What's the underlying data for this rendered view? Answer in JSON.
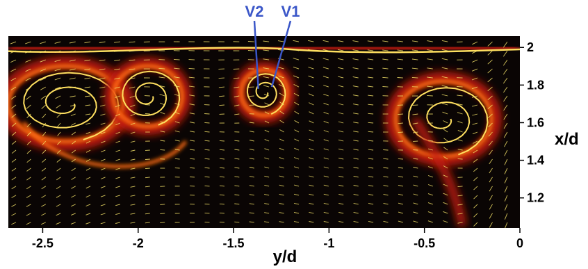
{
  "chart_data": {
    "type": "heatmap",
    "description_kind": "vorticity contour with velocity vector field",
    "xlabel": "y/d",
    "ylabel": "x/d",
    "xlim": [
      -2.68,
      0.0
    ],
    "ylim": [
      1.04,
      2.06
    ],
    "x_ticks": [
      {
        "value": -2.5,
        "label": "-2.5"
      },
      {
        "value": -2.0,
        "label": "-2"
      },
      {
        "value": -1.5,
        "label": "-1.5"
      },
      {
        "value": -1.0,
        "label": "-1"
      },
      {
        "value": -0.5,
        "label": "-0.5"
      },
      {
        "value": 0.0,
        "label": "0"
      }
    ],
    "y_ticks": [
      {
        "value": 2.0,
        "label": "2"
      },
      {
        "value": 1.8,
        "label": "1.8"
      },
      {
        "value": 1.6,
        "label": "1.6"
      },
      {
        "value": 1.4,
        "label": "1.4"
      },
      {
        "value": 1.2,
        "label": "1.2"
      }
    ],
    "annotations": [
      {
        "label": "V2",
        "target": [
          -1.37,
          1.78
        ]
      },
      {
        "label": "V1",
        "target": [
          -1.3,
          1.79
        ]
      }
    ],
    "vortex_structures": [
      {
        "center": [
          -2.38,
          1.7
        ],
        "radius_x": 0.3,
        "radius_y": 0.2
      },
      {
        "center": [
          -1.95,
          1.74
        ],
        "radius_x": 0.18,
        "radius_y": 0.16
      },
      {
        "center": [
          -1.34,
          1.76
        ],
        "radius_x": 0.12,
        "radius_y": 0.12
      },
      {
        "center": [
          -0.4,
          1.62
        ],
        "radius_x": 0.25,
        "radius_y": 0.2
      }
    ],
    "colors": {
      "background": "#0a0504",
      "low_vorticity": "#c41a0a",
      "mid_vorticity": "#ff6a10",
      "high_vorticity": "#ffe060",
      "vectors": "#f5e46a",
      "annotation": "#3a56c8"
    },
    "grid": false
  }
}
